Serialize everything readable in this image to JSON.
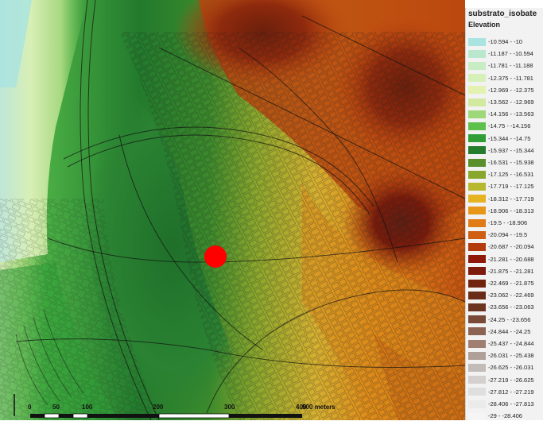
{
  "legend": {
    "title": "substrato_isobate",
    "subtitle": "Elevation",
    "classes": [
      {
        "label": "-10.594 - -10",
        "color": "#a9e4e1"
      },
      {
        "label": "-11.187 - -10.594",
        "color": "#b9e8cf"
      },
      {
        "label": "-11.781 - -11.188",
        "color": "#c8ecc4"
      },
      {
        "label": "-12.375 - -11.781",
        "color": "#d6f0b9"
      },
      {
        "label": "-12.969 - -12.375",
        "color": "#e3f2b0"
      },
      {
        "label": "-13.562 - -12.969",
        "color": "#d2eaa0"
      },
      {
        "label": "-14.156 - -13.563",
        "color": "#9fd878"
      },
      {
        "label": "-14.75 - -14.156",
        "color": "#60c04c"
      },
      {
        "label": "-15.344 - -14.75",
        "color": "#2f9e36"
      },
      {
        "label": "-15.937 - -15.344",
        "color": "#247c2c"
      },
      {
        "label": "-16.531 - -15.938",
        "color": "#5b8f2b"
      },
      {
        "label": "-17.125 - -16.531",
        "color": "#8aa72d"
      },
      {
        "label": "-17.719 - -17.125",
        "color": "#b8b830"
      },
      {
        "label": "-18.312 - -17.719",
        "color": "#e6b321"
      },
      {
        "label": "-18.906 - -18.313",
        "color": "#e8961a"
      },
      {
        "label": "-19.5 - -18.906",
        "color": "#e07b15"
      },
      {
        "label": "-20.094 - -19.5",
        "color": "#cf5d12"
      },
      {
        "label": "-20.687 - -20.094",
        "color": "#b33b0e"
      },
      {
        "label": "-21.281 - -20.688",
        "color": "#8f180a"
      },
      {
        "label": "-21.875 - -21.281",
        "color": "#7e1a0c"
      },
      {
        "label": "-22.469 - -21.875",
        "color": "#702410"
      },
      {
        "label": "-23.062 - -22.469",
        "color": "#6a2c17"
      },
      {
        "label": "-23.656 - -23.063",
        "color": "#6b3320"
      },
      {
        "label": "-24.25 - -23.656",
        "color": "#7a4a38"
      },
      {
        "label": "-24.844 - -24.25",
        "color": "#8c6352"
      },
      {
        "label": "-25.437 - -24.844",
        "color": "#9e7f72"
      },
      {
        "label": "-26.031 - -25.438",
        "color": "#b0a09a"
      },
      {
        "label": "-26.625 - -26.031",
        "color": "#c2bcb9"
      },
      {
        "label": "-27.219 - -26.625",
        "color": "#d3d0cf"
      },
      {
        "label": "-27.812 - -27.219",
        "color": "#e0dfdf"
      },
      {
        "label": "-28.406 - -27.813",
        "color": "#ebebeb"
      },
      {
        "label": "-29 - -28.406",
        "color": "#f5f5f5"
      }
    ]
  },
  "scalebar": {
    "labels": [
      "0",
      "50",
      "100",
      "200",
      "300",
      "400",
      "500 meters"
    ]
  },
  "marker": {
    "color": "#ff0000"
  }
}
